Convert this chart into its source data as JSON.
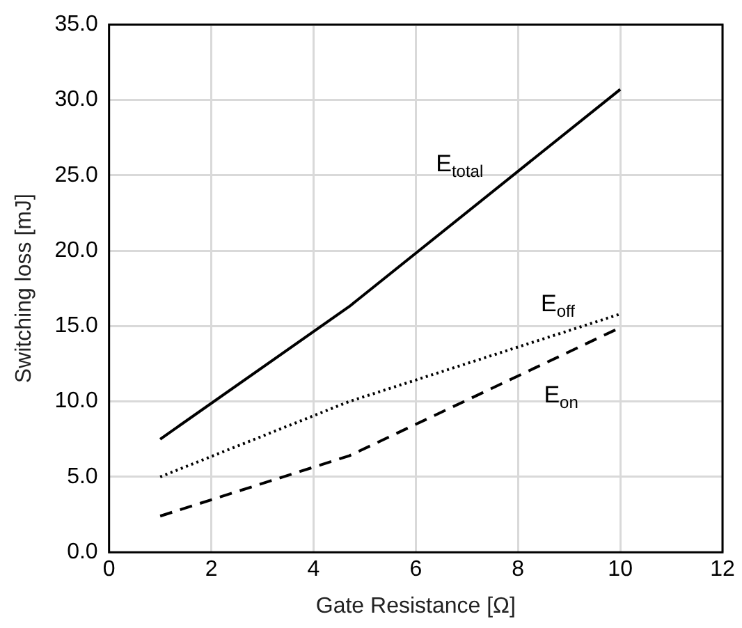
{
  "chart_data": {
    "type": "line",
    "xlabel": "Gate Resistance [Ω]",
    "ylabel": "Switching loss [mJ]",
    "xlim": [
      0,
      12
    ],
    "xticks": [
      0,
      2,
      4,
      6,
      8,
      10,
      12
    ],
    "ylim": [
      0,
      35
    ],
    "yticks": [
      {
        "value": 0,
        "label": "0.0"
      },
      {
        "value": 5,
        "label": "5.0"
      },
      {
        "value": 10,
        "label": "10.0"
      },
      {
        "value": 15,
        "label": "15.0"
      },
      {
        "value": 20,
        "label": "20.0"
      },
      {
        "value": 25,
        "label": "25.0"
      },
      {
        "value": 30,
        "label": "30.0"
      },
      {
        "value": 35,
        "label": "35.0"
      }
    ],
    "grid": true,
    "legend": false,
    "marker": "none",
    "series": [
      {
        "name": "E$_{total}$",
        "color": "#000000",
        "line_style": "solid",
        "x": [
          1,
          4.7,
          10
        ],
        "values": [
          7.5,
          16.3,
          30.7
        ]
      },
      {
        "name": "E$_{off}$",
        "color": "#000000",
        "line_style": "dotted",
        "x": [
          1,
          4.7,
          10
        ],
        "values": [
          5.0,
          10.0,
          15.8
        ]
      },
      {
        "name": "E$_{on}$",
        "color": "#000000",
        "line_style": "dashed",
        "x": [
          1,
          4.7,
          10
        ],
        "values": [
          2.4,
          6.4,
          14.9
        ]
      }
    ]
  }
}
